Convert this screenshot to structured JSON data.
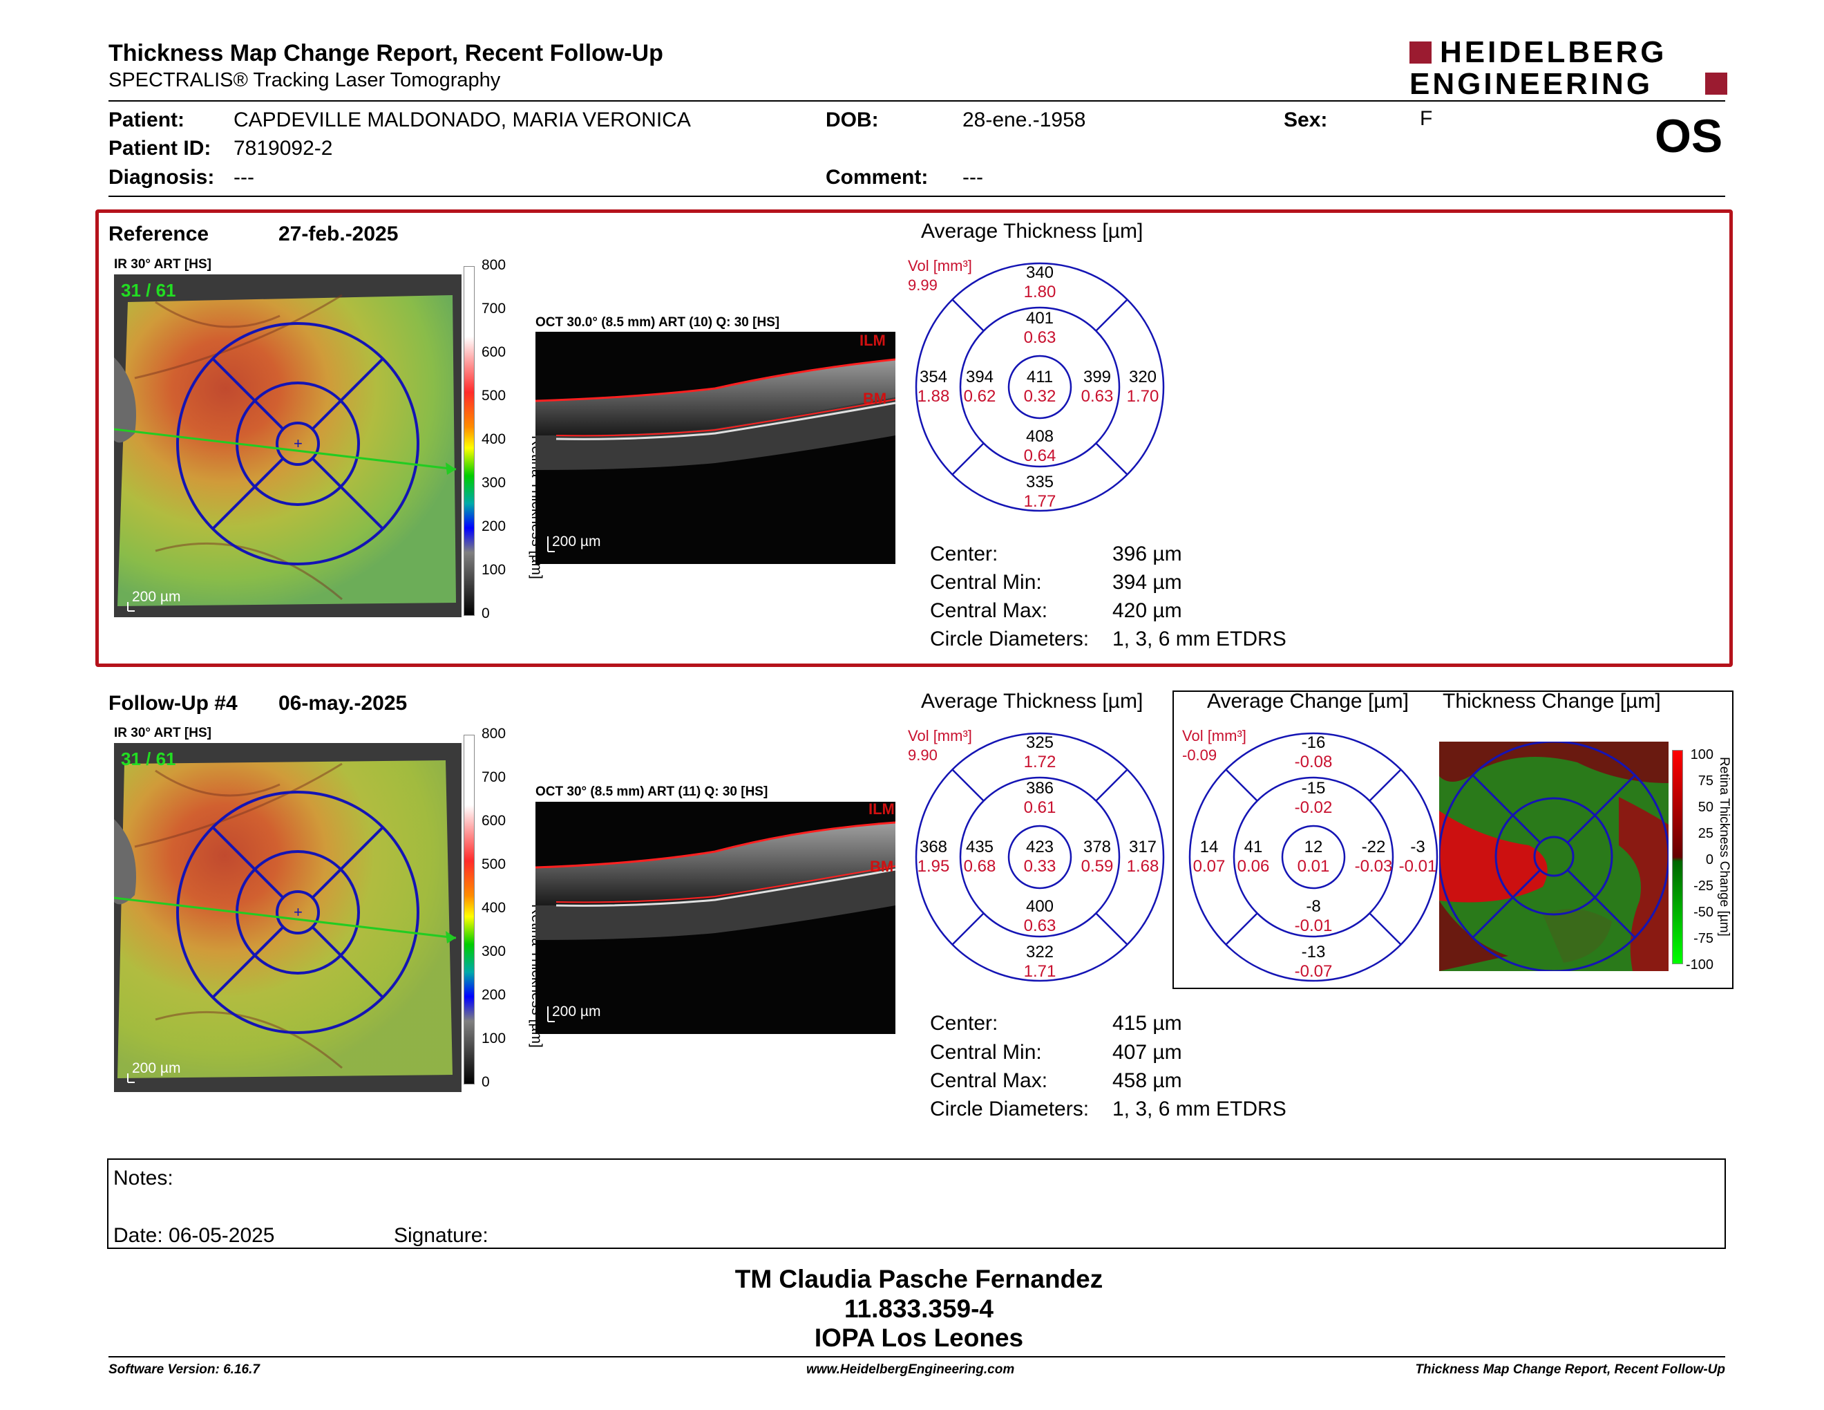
{
  "header": {
    "title": "Thickness Map Change Report, Recent Follow-Up",
    "subtitle": "SPECTRALIS® Tracking Laser Tomography",
    "brand_line1": "HEIDELBERG",
    "brand_line2": "ENGINEERING",
    "eye": "OS"
  },
  "patient": {
    "patient_label": "Patient:",
    "patient_value": "CAPDEVILLE MALDONADO, MARIA VERONICA",
    "id_label": "Patient ID:",
    "id_value": "7819092-2",
    "diagnosis_label": "Diagnosis:",
    "diagnosis_value": "---",
    "dob_label": "DOB:",
    "dob_value": "28-ene.-1958",
    "comment_label": "Comment:",
    "comment_value": "---",
    "sex_label": "Sex:",
    "sex_value": "F"
  },
  "reference": {
    "label": "Reference",
    "date": "27-feb.-2025",
    "ir_label": "IR 30° ART [HS]",
    "ir_counter": "31 / 61",
    "ir_scale": "200 µm",
    "oct_label": "OCT 30.0° (8.5 mm) ART (10) Q: 30 [HS]",
    "oct_scale": "200 µm",
    "ilm": "ILM",
    "bm": "BM",
    "avg_title": "Average Thickness [µm]",
    "vol_label": "Vol [mm³]",
    "vol_value": "9.99",
    "sectors": {
      "outer_top": [
        "340",
        "1.80"
      ],
      "inner_top": [
        "401",
        "0.63"
      ],
      "outer_left": [
        "354",
        "1.88"
      ],
      "inner_left": [
        "394",
        "0.62"
      ],
      "center": [
        "411",
        "0.32"
      ],
      "inner_right": [
        "399",
        "0.63"
      ],
      "outer_right": [
        "320",
        "1.70"
      ],
      "inner_bottom": [
        "408",
        "0.64"
      ],
      "outer_bottom": [
        "335",
        "1.77"
      ]
    },
    "center_label": "Center:",
    "center_value": "396 µm",
    "cmin_label": "Central Min:",
    "cmin_value": "394 µm",
    "cmax_label": "Central Max:",
    "cmax_value": "420 µm",
    "circ_label": "Circle Diameters:",
    "circ_value": "1, 3, 6 mm ETDRS"
  },
  "followup": {
    "label": "Follow-Up #4",
    "date": "06-may.-2025",
    "ir_label": "IR 30° ART [HS]",
    "ir_counter": "31 / 61",
    "ir_scale": "200 µm",
    "oct_label": "OCT 30° (8.5 mm) ART (11) Q: 30 [HS]",
    "oct_scale": "200 µm",
    "ilm": "ILM",
    "bm": "BM",
    "avg_title": "Average Thickness [µm]",
    "vol_label": "Vol [mm³]",
    "vol_value": "9.90",
    "sectors": {
      "outer_top": [
        "325",
        "1.72"
      ],
      "inner_top": [
        "386",
        "0.61"
      ],
      "outer_left": [
        "368",
        "1.95"
      ],
      "inner_left": [
        "435",
        "0.68"
      ],
      "center": [
        "423",
        "0.33"
      ],
      "inner_right": [
        "378",
        "0.59"
      ],
      "outer_right": [
        "317",
        "1.68"
      ],
      "inner_bottom": [
        "400",
        "0.63"
      ],
      "outer_bottom": [
        "322",
        "1.71"
      ]
    },
    "center_label": "Center:",
    "center_value": "415 µm",
    "cmin_label": "Central Min:",
    "cmin_value": "407 µm",
    "cmax_label": "Central Max:",
    "cmax_value": "458 µm",
    "circ_label": "Circle Diameters:",
    "circ_value": "1, 3, 6 mm ETDRS"
  },
  "change": {
    "avg_title": "Average Change [µm]",
    "map_title": "Thickness Change [µm]",
    "vol_label": "Vol [mm³]",
    "vol_value": "-0.09",
    "sectors": {
      "outer_top": [
        "-16",
        "-0.08"
      ],
      "inner_top": [
        "-15",
        "-0.02"
      ],
      "outer_left": [
        "14",
        "0.07"
      ],
      "inner_left": [
        "41",
        "0.06"
      ],
      "center": [
        "12",
        "0.01"
      ],
      "inner_right": [
        "-22",
        "-0.03"
      ],
      "outer_right": [
        "-3",
        "-0.01"
      ],
      "inner_bottom": [
        "-8",
        "-0.01"
      ],
      "outer_bottom": [
        "-13",
        "-0.07"
      ]
    },
    "scale_ticks": [
      "100",
      "75",
      "50",
      "25",
      "0",
      "-25",
      "-50",
      "-75",
      "-100"
    ],
    "scale_title": "Retina Thickness Change [µm]"
  },
  "thickness_scale": {
    "ticks": [
      "800",
      "700",
      "600",
      "500",
      "400",
      "300",
      "200",
      "100",
      "0"
    ],
    "title": "Retina Thickness [µm]"
  },
  "notes": {
    "notes_label": "Notes:",
    "date_label": "Date: 06-05-2025",
    "signature_label": "Signature:"
  },
  "signature": {
    "name": "TM Claudia Pasche Fernandez",
    "id": "11.833.359-4",
    "place": "IOPA Los Leones"
  },
  "footer": {
    "software": "Software Version: 6.16.7",
    "website": "www.HeidelbergEngineering.com",
    "report": "Thickness Map Change Report, Recent Follow-Up"
  }
}
